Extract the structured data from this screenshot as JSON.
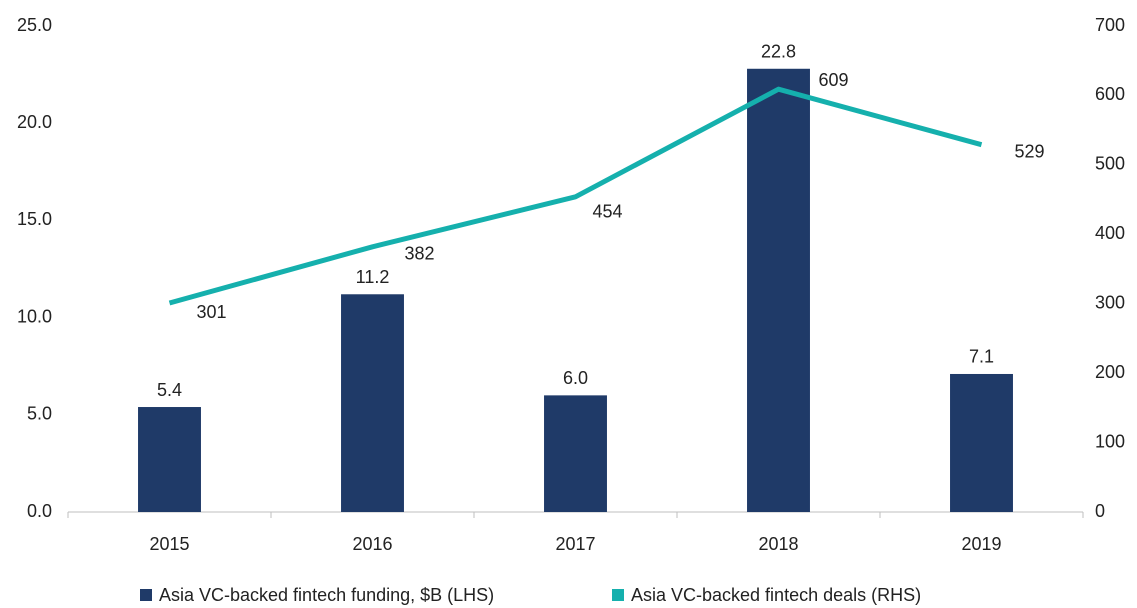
{
  "chart_data": {
    "type": "bar",
    "categories": [
      "2015",
      "2016",
      "2017",
      "2018",
      "2019"
    ],
    "series": [
      {
        "name": "Asia VC-backed fintech funding, $B (LHS)",
        "color": "#1f3a68",
        "type": "bar",
        "values": [
          5.4,
          11.2,
          6.0,
          22.8,
          7.1
        ],
        "value_labels": [
          "5.4",
          "11.2",
          "6.0",
          "22.8",
          "7.1"
        ]
      },
      {
        "name": "Asia VC-backed fintech deals (RHS)",
        "color": "#15b0ad",
        "type": "line",
        "axis": "y2",
        "values": [
          301,
          382,
          454,
          609,
          529
        ]
      }
    ],
    "ylim": [
      0,
      25
    ],
    "yticks": [
      {
        "value": 0,
        "label": "0.0"
      },
      {
        "value": 5,
        "label": "5.0"
      },
      {
        "value": 10,
        "label": "10.0"
      },
      {
        "value": 15,
        "label": "15.0"
      },
      {
        "value": 20,
        "label": "20.0"
      },
      {
        "value": 25,
        "label": "25.0"
      }
    ],
    "y2lim": [
      0,
      700
    ],
    "y2ticks": [
      0,
      100,
      200,
      300,
      400,
      500,
      600,
      700
    ],
    "legend": "bottom"
  }
}
